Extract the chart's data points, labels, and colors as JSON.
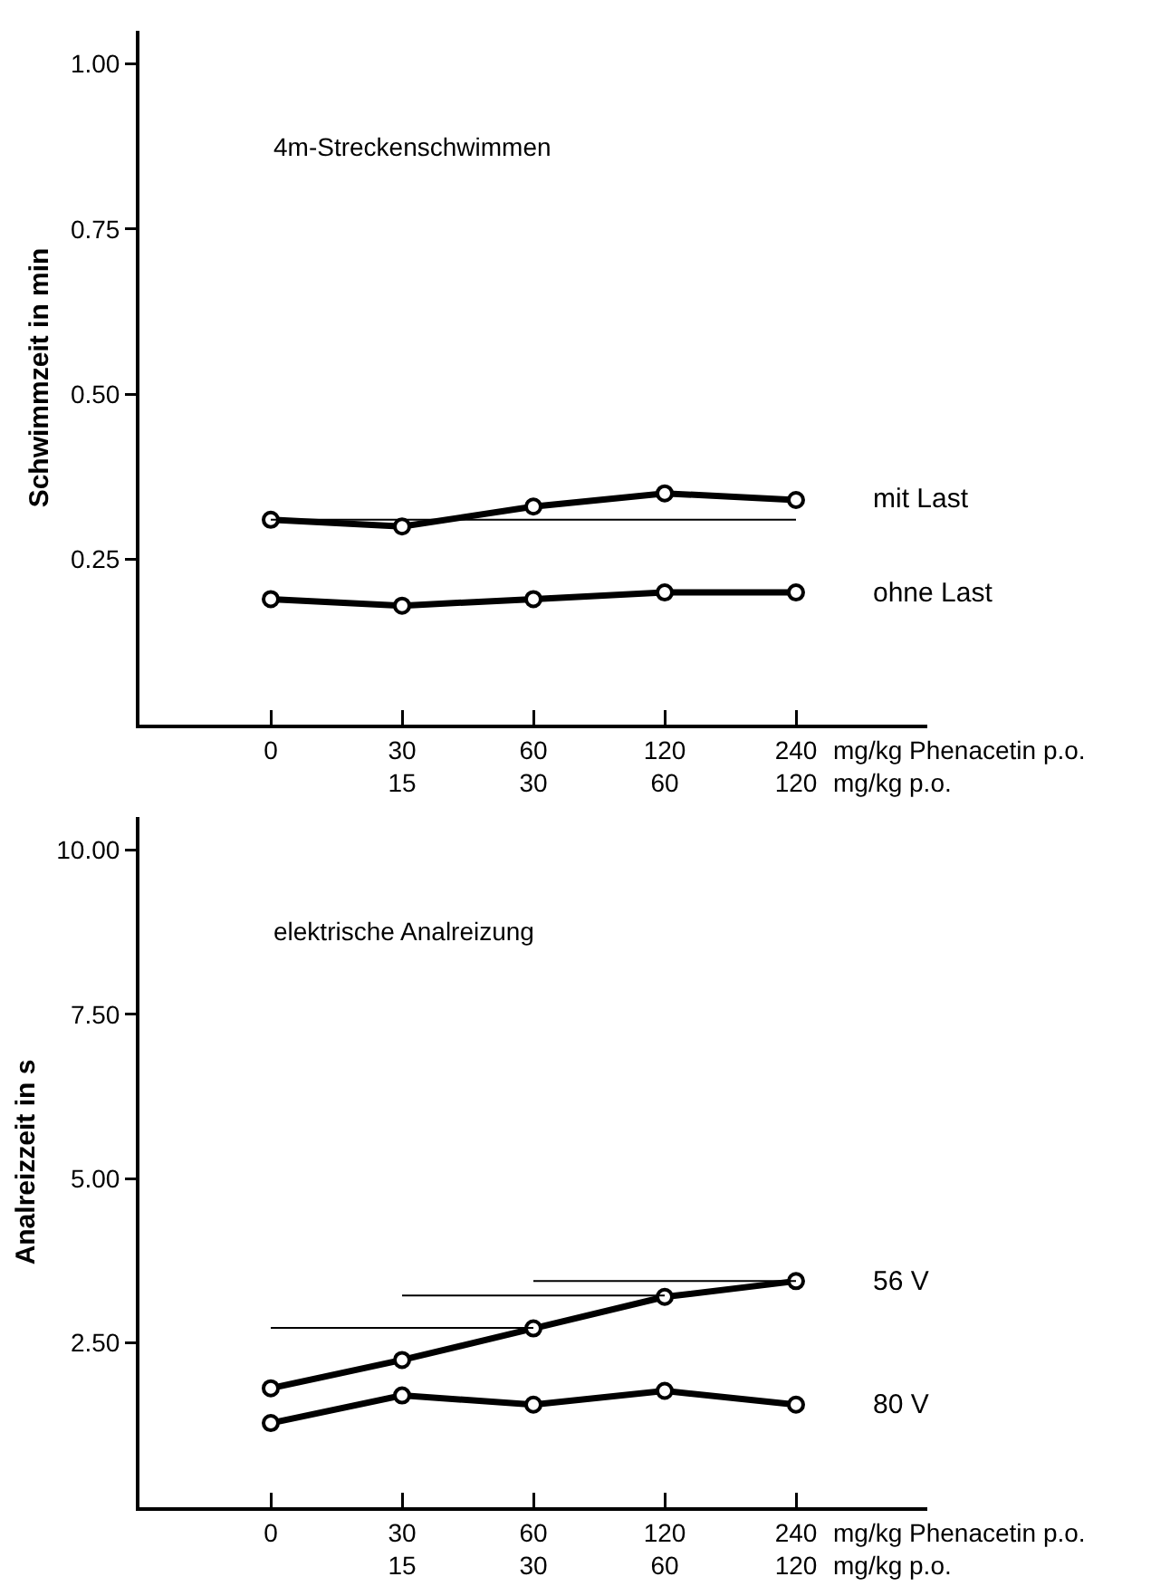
{
  "chart_data": [
    {
      "type": "line",
      "title": "4m-Streckenschwimmen",
      "ylabel": "Schwimmzeit in min",
      "xlabel": "mg/kg Phenacetin p.o.\nmg/kg p.o.",
      "categories": [
        "0",
        "30\n15",
        "60\n30",
        "120\n60",
        "240\n120"
      ],
      "ylim": [
        0,
        1.05
      ],
      "yticks": [
        0.25,
        {
          "value": 0.5,
          "label": "0.50"
        },
        0.75,
        {
          "value": 1,
          "label": "1.00"
        }
      ],
      "grid": false,
      "legend": false,
      "marker": "circle",
      "line_style": "solid",
      "series": [
        {
          "name": "mit Last",
          "color": "#000000",
          "values": [
            0.31,
            0.3,
            0.33,
            0.35,
            0.34
          ]
        },
        {
          "name": "ohne Last",
          "color": "#000000",
          "values": [
            0.19,
            0.18,
            0.19,
            0.2,
            0.2
          ]
        },
        {
          "color": "#000000",
          "marker": "none",
          "values": [
            0.31,
            0.31,
            0.31,
            0.31,
            0.31
          ]
        }
      ]
    },
    {
      "type": "line",
      "title": "elektrische Analreizung",
      "ylabel": "Analreizzeit in s",
      "xlabel": "mg/kg Phenacetin p.o.\nmg/kg p.o.",
      "categories": [
        "0",
        "30\n15",
        "60\n30",
        "120\n60",
        "240\n120"
      ],
      "ylim": [
        0,
        10.5
      ],
      "yticks": [
        {
          "value": 2.5,
          "label": "2.50"
        },
        {
          "value": 5,
          "label": "5.00"
        },
        {
          "value": 7.5,
          "label": "7.50"
        },
        {
          "value": 10,
          "label": "10.00"
        }
      ],
      "grid": false,
      "legend": false,
      "marker": "circle",
      "line_style": "solid",
      "series": [
        {
          "name": "56 V",
          "color": "#000000",
          "values": [
            1.81,
            2.24,
            2.72,
            3.2,
            3.44
          ]
        },
        {
          "name": "80 V",
          "color": "#000000",
          "values": [
            1.28,
            1.7,
            1.56,
            1.77,
            1.56
          ]
        },
        {
          "color": "#000000",
          "marker": "none",
          "values": [
            2.73,
            2.73,
            2.73,
            null,
            null
          ]
        },
        {
          "color": "#000000",
          "marker": "none",
          "values": [
            null,
            3.22,
            3.22,
            3.22,
            null
          ]
        },
        {
          "color": "#000000",
          "marker": "none",
          "values": [
            null,
            null,
            3.44,
            3.44,
            3.44
          ]
        }
      ]
    }
  ]
}
